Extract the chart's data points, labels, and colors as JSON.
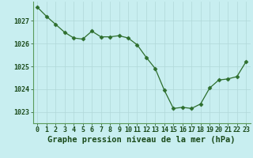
{
  "x": [
    0,
    1,
    2,
    3,
    4,
    5,
    6,
    7,
    8,
    9,
    10,
    11,
    12,
    13,
    14,
    15,
    16,
    17,
    18,
    19,
    20,
    21,
    22,
    23
  ],
  "y": [
    1027.6,
    1027.2,
    1026.85,
    1026.5,
    1026.25,
    1026.2,
    1026.55,
    1026.3,
    1026.3,
    1026.35,
    1026.25,
    1025.95,
    1025.4,
    1024.9,
    1023.95,
    1023.15,
    1023.2,
    1023.15,
    1023.35,
    1024.05,
    1024.4,
    1024.45,
    1024.55,
    1025.2
  ],
  "line_color": "#2d6e2d",
  "marker": "D",
  "marker_size": 2.5,
  "bg_color": "#c8eef0",
  "grid_color": "#b0d8d8",
  "xlabel": "Graphe pression niveau de la mer (hPa)",
  "xlabel_color": "#1a4a1a",
  "xlabel_fontsize": 7.5,
  "tick_color": "#1a4a1a",
  "tick_fontsize": 6,
  "ylim": [
    1022.5,
    1027.85
  ],
  "yticks": [
    1023,
    1024,
    1025,
    1026,
    1027
  ],
  "xticks": [
    0,
    1,
    2,
    3,
    4,
    5,
    6,
    7,
    8,
    9,
    10,
    11,
    12,
    13,
    14,
    15,
    16,
    17,
    18,
    19,
    20,
    21,
    22,
    23
  ],
  "spine_color": "#5a9a5a",
  "spine_linewidth": 0.8
}
